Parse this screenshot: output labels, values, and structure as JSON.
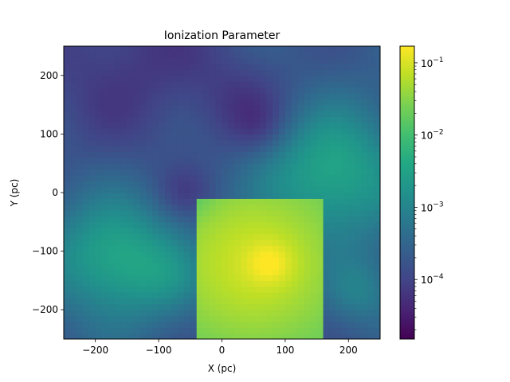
{
  "chart_data": {
    "type": "heatmap",
    "title": "Ionization Parameter",
    "xlabel": "X (pc)",
    "ylabel": "Y (pc)",
    "xlim": [
      -250,
      250
    ],
    "ylim": [
      -250,
      250
    ],
    "xticks": [
      -200,
      -100,
      0,
      100,
      200
    ],
    "yticks": [
      -200,
      -100,
      0,
      100,
      200
    ],
    "xtick_labels": [
      "−200",
      "−100",
      "0",
      "100",
      "200"
    ],
    "ytick_labels": [
      "−200",
      "−100",
      "0",
      "100",
      "200"
    ],
    "colormap": "viridis",
    "color_scale": "log",
    "colorbar": {
      "range": [
        1.5e-05,
        0.17
      ],
      "ticks": [
        0.0001,
        0.001,
        0.01,
        0.1
      ],
      "tick_labels": [
        {
          "base": "10",
          "exp": "−4"
        },
        {
          "base": "10",
          "exp": "−3"
        },
        {
          "base": "10",
          "exp": "−2"
        },
        {
          "base": "10",
          "exp": "−1"
        }
      ]
    },
    "grid": false
  }
}
